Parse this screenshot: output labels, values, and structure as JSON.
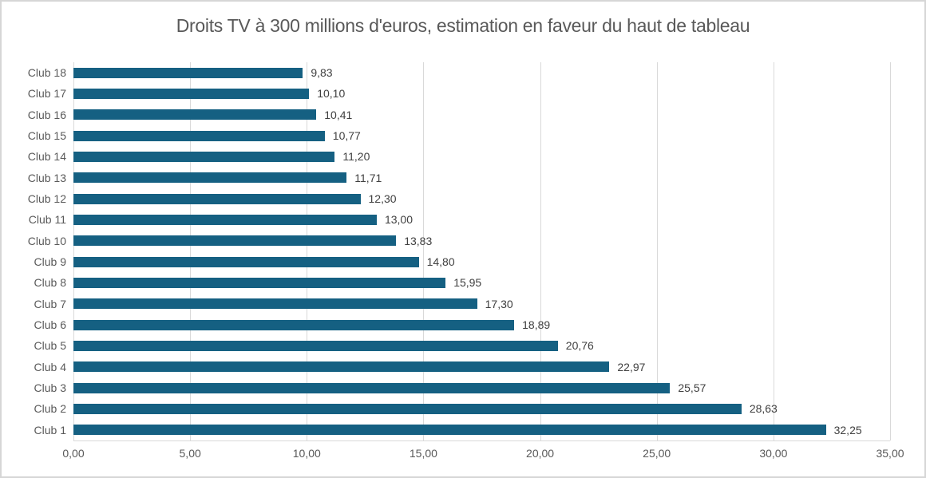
{
  "window": {
    "background": "#FFFFFF",
    "border_color": "#D6D6D6"
  },
  "chart_data": {
    "type": "bar",
    "orientation": "horizontal",
    "title": "Droits TV à 300 millions d'euros, estimation en faveur du haut de tableau",
    "xlabel": "",
    "ylabel": "",
    "xlim": [
      0,
      35
    ],
    "grid": true,
    "legend": false,
    "categories": [
      "Club 18",
      "Club 17",
      "Club 16",
      "Club 15",
      "Club 14",
      "Club 13",
      "Club 12",
      "Club 11",
      "Club 10",
      "Club 9",
      "Club 8",
      "Club 7",
      "Club 6",
      "Club 5",
      "Club 4",
      "Club 3",
      "Club 2",
      "Club 1"
    ],
    "values": [
      9.83,
      10.1,
      10.41,
      10.77,
      11.2,
      11.71,
      12.3,
      13.0,
      13.83,
      14.8,
      15.95,
      17.3,
      18.89,
      20.76,
      22.97,
      25.57,
      28.63,
      32.25
    ],
    "value_labels": [
      "9,83",
      "10,10",
      "10,41",
      "10,77",
      "11,20",
      "11,71",
      "12,30",
      "13,00",
      "13,83",
      "14,80",
      "15,95",
      "17,30",
      "18,89",
      "20,76",
      "22,97",
      "25,57",
      "28,63",
      "32,25"
    ],
    "x_ticks": [
      {
        "value": 0,
        "label": "0,00"
      },
      {
        "value": 5,
        "label": "5,00"
      },
      {
        "value": 10,
        "label": "10,00"
      },
      {
        "value": 15,
        "label": "15,00"
      },
      {
        "value": 20,
        "label": "20,00"
      },
      {
        "value": 25,
        "label": "25,00"
      },
      {
        "value": 30,
        "label": "30,00"
      },
      {
        "value": 35,
        "label": "35,00"
      }
    ],
    "colors": {
      "bar": "#156082",
      "gridline": "#D9D9D9",
      "axis_line": "#D9D9D9",
      "title_text": "#595959",
      "axis_text": "#595959",
      "value_text": "#404040"
    }
  }
}
